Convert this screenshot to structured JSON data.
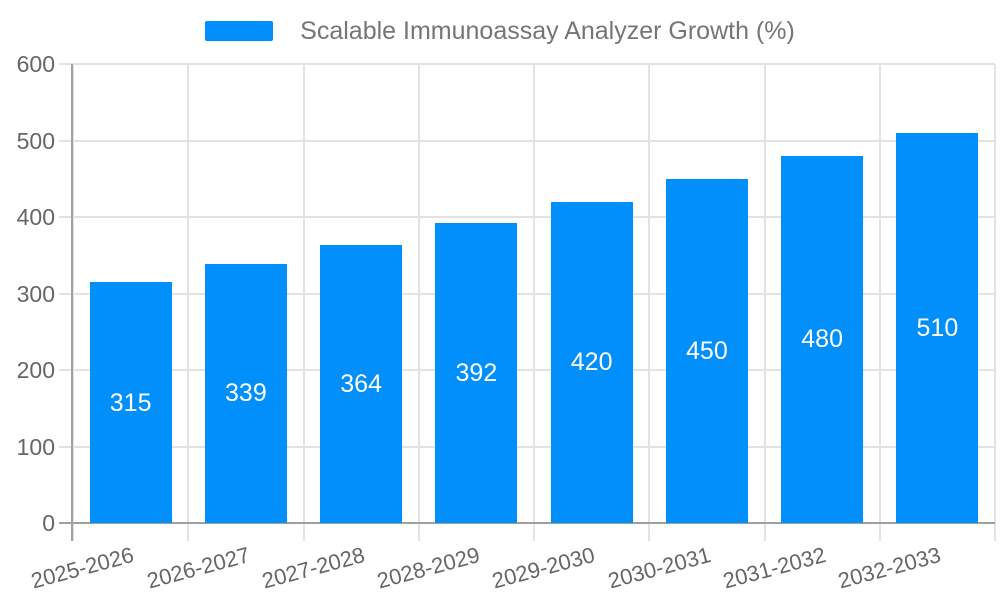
{
  "chart_data": {
    "type": "bar",
    "title": "Scalable Immunoassay Analyzer Growth (%)",
    "categories": [
      "2025-2026",
      "2026-2027",
      "2027-2028",
      "2028-2029",
      "2029-2030",
      "2030-2031",
      "2031-2032",
      "2032-2033"
    ],
    "values": [
      315,
      339,
      364,
      392,
      420,
      450,
      480,
      510
    ],
    "xlabel": "",
    "ylabel": "",
    "ylim": [
      0,
      600
    ],
    "yticks": [
      0,
      100,
      200,
      300,
      400,
      500,
      600
    ],
    "grid": true,
    "legend_position": "top",
    "colors": {
      "bar": "#008FFB",
      "bar_label": "#ffffff",
      "axis_text": "#666666",
      "legend_text": "#757575",
      "gridline": "#e3e3e3",
      "axis_line": "#a0a0a0"
    }
  }
}
